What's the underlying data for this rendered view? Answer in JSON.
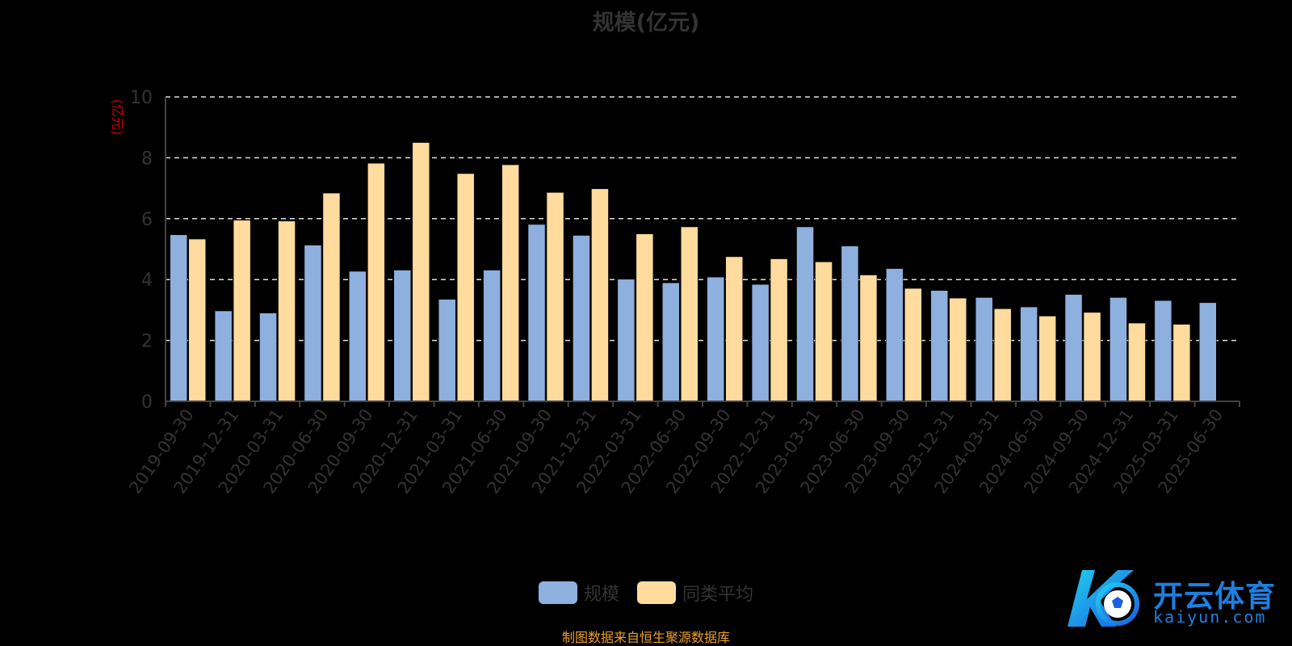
{
  "chart_data": {
    "type": "bar",
    "title": "规模(亿元)",
    "ylabel": "(亿元)",
    "xlabel": "",
    "ylim": [
      0,
      10
    ],
    "yticks": [
      0,
      2,
      4,
      6,
      8,
      10
    ],
    "grid": true,
    "legend_position": "bottom",
    "categories": [
      "2019-09-30",
      "2019-12-31",
      "2020-03-31",
      "2020-06-30",
      "2020-09-30",
      "2020-12-31",
      "2021-03-31",
      "2021-06-30",
      "2021-09-30",
      "2021-12-31",
      "2022-03-31",
      "2022-06-30",
      "2022-09-30",
      "2022-12-31",
      "2023-03-31",
      "2023-06-30",
      "2023-09-30",
      "2023-12-31",
      "2024-03-31",
      "2024-06-30",
      "2024-09-30",
      "2024-12-31",
      "2025-03-31",
      "2025-06-30"
    ],
    "series": [
      {
        "name": "规模",
        "color": "#8eb0de",
        "values": [
          5.47,
          2.97,
          2.9,
          5.13,
          4.27,
          4.31,
          3.35,
          4.31,
          5.81,
          5.45,
          4.01,
          3.89,
          4.08,
          3.84,
          5.73,
          5.1,
          4.36,
          3.64,
          3.41,
          3.1,
          3.51,
          3.41,
          3.31,
          3.24
        ]
      },
      {
        "name": "同类平均",
        "color": "#ffdb9e",
        "values": [
          5.33,
          5.95,
          5.92,
          6.84,
          7.82,
          8.5,
          7.48,
          7.77,
          6.86,
          6.98,
          5.5,
          5.73,
          4.75,
          4.68,
          4.58,
          4.15,
          3.71,
          3.39,
          3.04,
          2.8,
          2.92,
          2.57,
          2.53,
          null
        ]
      }
    ]
  },
  "source_note": "制图数据来自恒生聚源数据库",
  "watermark": {
    "brand": "开云体育",
    "url": "kaiyun.com"
  },
  "colors": {
    "background": "#000000",
    "axis_text": "#333333",
    "axis_line": "#444444",
    "grid_line": "#dddddd",
    "ylabel_color": "#cc0000",
    "source_color": "#f0a020",
    "brand_color": "#1d7fe0"
  }
}
